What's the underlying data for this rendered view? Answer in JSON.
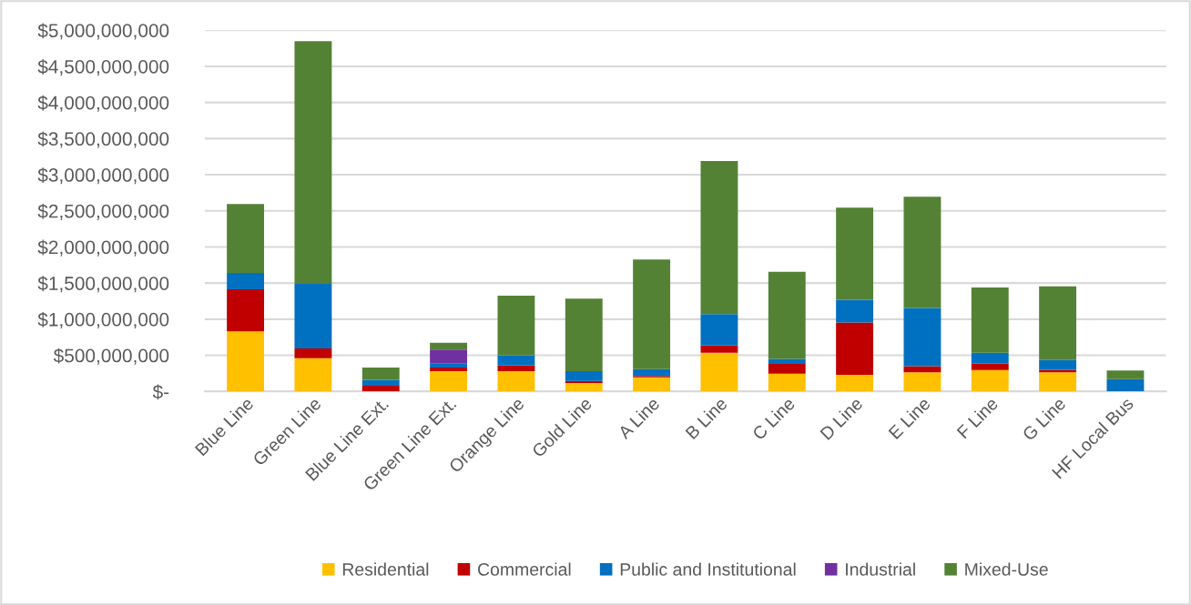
{
  "chart_data": {
    "type": "bar",
    "stacked": true,
    "categories": [
      "Blue Line",
      "Green Line",
      "Blue Line Ext.",
      "Green Line Ext.",
      "Orange Line",
      "Gold Line",
      "A Line",
      "B Line",
      "C Line",
      "D Line",
      "E Line",
      "F Line",
      "G Line",
      "HF Local Bus"
    ],
    "series": [
      {
        "name": "Residential",
        "color": "#ffc000",
        "values": [
          830000000,
          460000000,
          0,
          280000000,
          280000000,
          115000000,
          195000000,
          535000000,
          245000000,
          230000000,
          265000000,
          295000000,
          265000000,
          0
        ]
      },
      {
        "name": "Commercial",
        "color": "#c00000",
        "values": [
          585000000,
          135000000,
          80000000,
          50000000,
          80000000,
          30000000,
          20000000,
          100000000,
          135000000,
          725000000,
          85000000,
          90000000,
          35000000,
          0
        ]
      },
      {
        "name": "Public and Institutional",
        "color": "#0070c0",
        "values": [
          225000000,
          895000000,
          80000000,
          55000000,
          140000000,
          135000000,
          95000000,
          435000000,
          70000000,
          315000000,
          805000000,
          150000000,
          135000000,
          170000000
        ]
      },
      {
        "name": "Industrial",
        "color": "#7030a0",
        "values": [
          0,
          0,
          0,
          195000000,
          0,
          0,
          0,
          0,
          0,
          0,
          0,
          0,
          0,
          0
        ]
      },
      {
        "name": "Mixed-Use",
        "color": "#548235",
        "values": [
          955000000,
          3360000000,
          170000000,
          95000000,
          825000000,
          1005000000,
          1515000000,
          2120000000,
          1205000000,
          1275000000,
          1540000000,
          905000000,
          1020000000,
          120000000
        ]
      }
    ],
    "ylim": [
      0,
      5000000000
    ],
    "yticks": [
      {
        "value": 0,
        "label": "$-"
      },
      {
        "value": 500000000,
        "label": "$500,000,000"
      },
      {
        "value": 1000000000,
        "label": "$1,000,000,000"
      },
      {
        "value": 1500000000,
        "label": "$1,500,000,000"
      },
      {
        "value": 2000000000,
        "label": "$2,000,000,000"
      },
      {
        "value": 2500000000,
        "label": "$2,500,000,000"
      },
      {
        "value": 3000000000,
        "label": "$3,000,000,000"
      },
      {
        "value": 3500000000,
        "label": "$3,500,000,000"
      },
      {
        "value": 4000000000,
        "label": "$4,000,000,000"
      },
      {
        "value": 4500000000,
        "label": "$4,500,000,000"
      },
      {
        "value": 5000000000,
        "label": "$5,000,000,000"
      }
    ],
    "grid": "y",
    "legend": "bottom"
  }
}
